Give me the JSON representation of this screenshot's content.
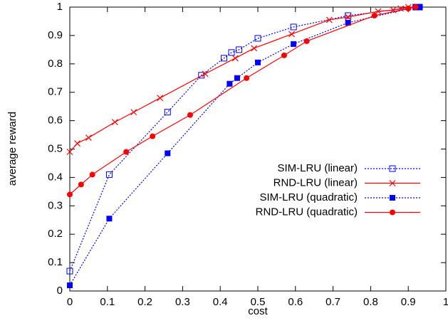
{
  "chart_data": {
    "type": "line",
    "x_label": "cost",
    "y_label": "average reward",
    "xlim": [
      0,
      1
    ],
    "ylim": [
      0,
      1
    ],
    "xticks": [
      0,
      0.1,
      0.2,
      0.3,
      0.4,
      0.5,
      0.6,
      0.7,
      0.8,
      0.9,
      1
    ],
    "yticks": [
      0,
      0.1,
      0.2,
      0.3,
      0.4,
      0.5,
      0.6,
      0.7,
      0.8,
      0.9,
      1
    ],
    "grid": false,
    "legend": "center right",
    "series": [
      {
        "name": "SIM-LRU (linear)",
        "color": "#0000ff",
        "line_style": "dotted",
        "marker": "open-square",
        "x": [
          0,
          0.105,
          0.26,
          0.35,
          0.41,
          0.43,
          0.45,
          0.5,
          0.595,
          0.74,
          0.92,
          0.93
        ],
        "values": [
          0.07,
          0.41,
          0.63,
          0.76,
          0.82,
          0.84,
          0.85,
          0.89,
          0.93,
          0.97,
          1.0,
          1.0
        ]
      },
      {
        "name": "RND-LRU (linear)",
        "color": "#ff0000",
        "line_style": "solid",
        "marker": "cross",
        "x": [
          0,
          0.02,
          0.05,
          0.12,
          0.17,
          0.24,
          0.36,
          0.44,
          0.49,
          0.59,
          0.69,
          0.74,
          0.82,
          0.86,
          0.88,
          0.9,
          0.92
        ],
        "values": [
          0.49,
          0.52,
          0.54,
          0.595,
          0.63,
          0.68,
          0.765,
          0.82,
          0.855,
          0.905,
          0.955,
          0.965,
          0.985,
          0.99,
          0.995,
          1.0,
          1.0
        ]
      },
      {
        "name": "SIM-LRU (quadratic)",
        "color": "#0000ff",
        "line_style": "dotted",
        "marker": "filled-square",
        "x": [
          0,
          0.105,
          0.26,
          0.425,
          0.445,
          0.5,
          0.595,
          0.74,
          0.92,
          0.93
        ],
        "values": [
          0.02,
          0.255,
          0.485,
          0.73,
          0.75,
          0.805,
          0.87,
          0.945,
          1.0,
          1.0
        ]
      },
      {
        "name": "RND-LRU (quadratic)",
        "color": "#ff0000",
        "line_style": "solid",
        "marker": "filled-circle",
        "x": [
          0,
          0.03,
          0.06,
          0.15,
          0.22,
          0.32,
          0.47,
          0.57,
          0.63,
          0.81,
          0.9,
          0.92
        ],
        "values": [
          0.34,
          0.375,
          0.41,
          0.49,
          0.545,
          0.62,
          0.75,
          0.83,
          0.88,
          0.97,
          0.995,
          1.0
        ]
      }
    ]
  }
}
